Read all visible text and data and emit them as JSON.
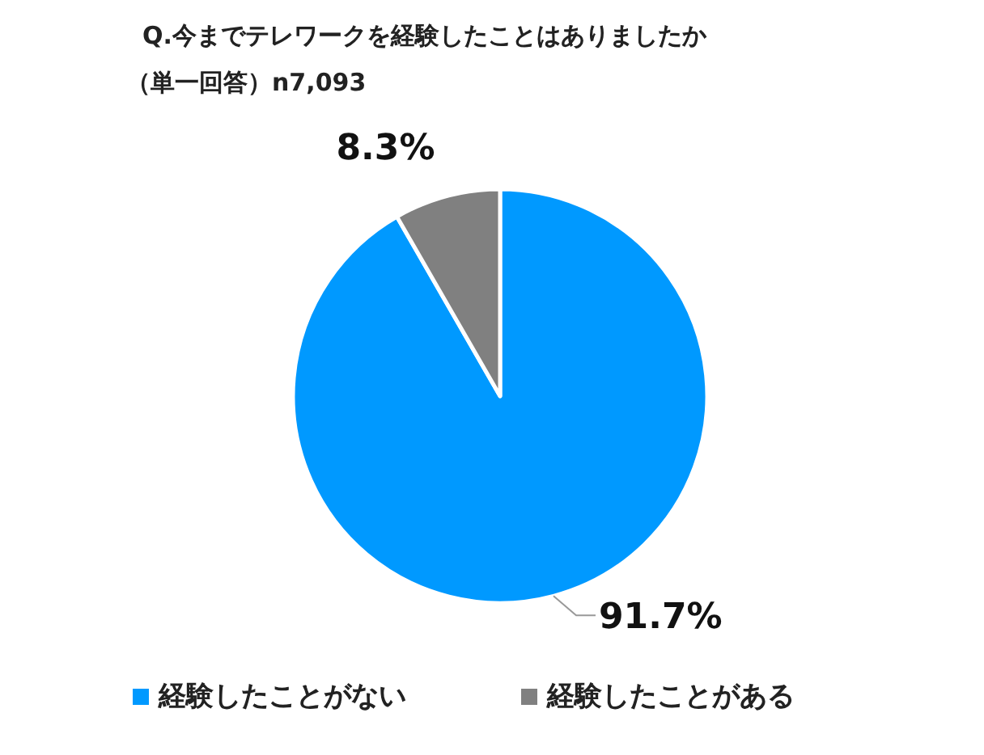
{
  "chart_data": {
    "type": "pie",
    "title": "Q.今までテレワークを経験したことはありましたか",
    "subtitle": "（単一回答）n7,093",
    "categories": [
      "経験したことがない",
      "経験したことがある"
    ],
    "values": [
      91.7,
      8.3
    ],
    "colors": [
      "#0099ff",
      "#808080"
    ],
    "value_labels": [
      "91.7%",
      "8.3%"
    ],
    "legend": "bottom"
  }
}
